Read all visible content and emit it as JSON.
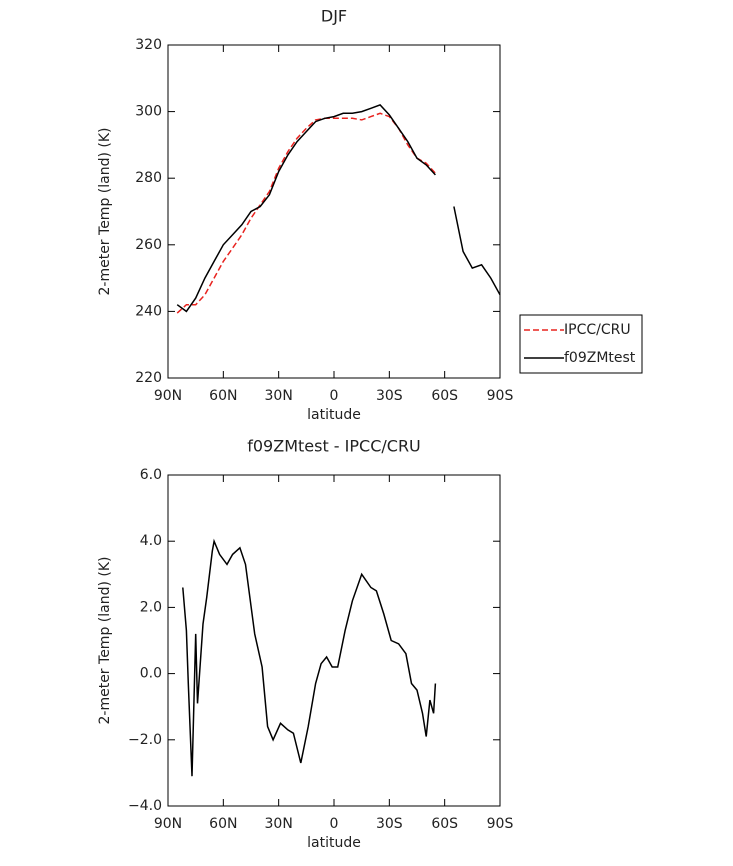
{
  "chart_data": [
    {
      "type": "line",
      "title": "DJF",
      "xlabel": "latitude",
      "ylabel": "2-meter Temp (land) (K)",
      "x": [
        85,
        80,
        75,
        70,
        65,
        60,
        55,
        50,
        45,
        40,
        35,
        30,
        25,
        20,
        15,
        10,
        5,
        0,
        -5,
        -10,
        -15,
        -20,
        -25,
        -30,
        -35,
        -40,
        -45,
        -50,
        -55,
        -60,
        -65,
        -70,
        -75,
        -80,
        -85,
        -90
      ],
      "series": [
        {
          "name": "IPCC/CRU",
          "color": "#e8231f",
          "dashed": true,
          "values": [
            239.5,
            242,
            242,
            245,
            250,
            255,
            259,
            263,
            268,
            272,
            276,
            283,
            288,
            292,
            295,
            297.5,
            298,
            298,
            298,
            298,
            297.5,
            298.5,
            299.5,
            298.5,
            295,
            290,
            286,
            284.5,
            281.5,
            null,
            null,
            null,
            null,
            null,
            null,
            null
          ]
        },
        {
          "name": "f09ZMtest",
          "color": "#000000",
          "dashed": false,
          "values": [
            242,
            240,
            244,
            250,
            255,
            260,
            263,
            266,
            270,
            271.5,
            275,
            282,
            287,
            291,
            294,
            297,
            298,
            298.5,
            299.5,
            299.5,
            300,
            301,
            302,
            299,
            295,
            291,
            286,
            284,
            281,
            null,
            271.5,
            258,
            253,
            254,
            250,
            245
          ]
        }
      ],
      "xlim": [
        90,
        -90
      ],
      "xticks": [
        {
          "value": 90,
          "label": "90N"
        },
        {
          "value": 60,
          "label": "60N"
        },
        {
          "value": 30,
          "label": "30N"
        },
        0,
        {
          "value": -30,
          "label": "30S"
        },
        {
          "value": -60,
          "label": "60S"
        },
        {
          "value": -90,
          "label": "90S"
        }
      ],
      "ylim": [
        220,
        320
      ],
      "yticks": [
        220,
        240,
        260,
        280,
        300,
        320
      ],
      "legend": "outside-right"
    },
    {
      "type": "line",
      "title": "f09ZMtest - IPCC/CRU",
      "xlabel": "latitude",
      "ylabel": "2-meter Temp (land) (K)",
      "x": [
        82,
        80,
        79,
        77,
        75,
        74,
        71,
        69,
        66,
        65,
        62,
        58,
        55,
        51,
        48,
        43,
        39,
        36,
        33,
        29,
        25,
        22,
        18,
        14,
        10,
        7,
        4,
        1,
        -2,
        -6,
        -10,
        -15,
        -20,
        -23,
        -27,
        -31,
        -35,
        -39,
        -42,
        -45,
        -48,
        -50,
        -52,
        -54,
        -55
      ],
      "series": [
        {
          "name": "f09ZMtest - IPCC/CRU",
          "color": "#000000",
          "dashed": false,
          "values": [
            2.6,
            1.3,
            -0.3,
            -3.1,
            1.2,
            -0.9,
            1.5,
            2.3,
            3.7,
            4.0,
            3.6,
            3.3,
            3.6,
            3.8,
            3.3,
            1.2,
            0.2,
            -1.6,
            -2.0,
            -1.5,
            -1.7,
            -1.8,
            -2.7,
            -1.6,
            -0.3,
            0.3,
            0.5,
            0.2,
            0.2,
            1.3,
            2.2,
            3.0,
            2.6,
            2.5,
            1.8,
            1.0,
            0.9,
            0.6,
            -0.3,
            -0.5,
            -1.2,
            -1.9,
            -0.8,
            -1.2,
            -0.3
          ]
        }
      ],
      "xlim": [
        90,
        -90
      ],
      "xticks": [
        {
          "value": 90,
          "label": "90N"
        },
        {
          "value": 60,
          "label": "60N"
        },
        {
          "value": 30,
          "label": "30N"
        },
        0,
        {
          "value": -30,
          "label": "30S"
        },
        {
          "value": -60,
          "label": "60S"
        },
        {
          "value": -90,
          "label": "90S"
        }
      ],
      "ylim": [
        -4,
        6
      ],
      "yticks": [
        {
          "value": -4,
          "label": "−4.0"
        },
        {
          "value": -2,
          "label": "−2.0"
        },
        {
          "value": 0,
          "label": "0.0"
        },
        {
          "value": 2,
          "label": "2.0"
        },
        {
          "value": 4,
          "label": "4.0"
        },
        {
          "value": 6,
          "label": "6.0"
        }
      ]
    }
  ]
}
